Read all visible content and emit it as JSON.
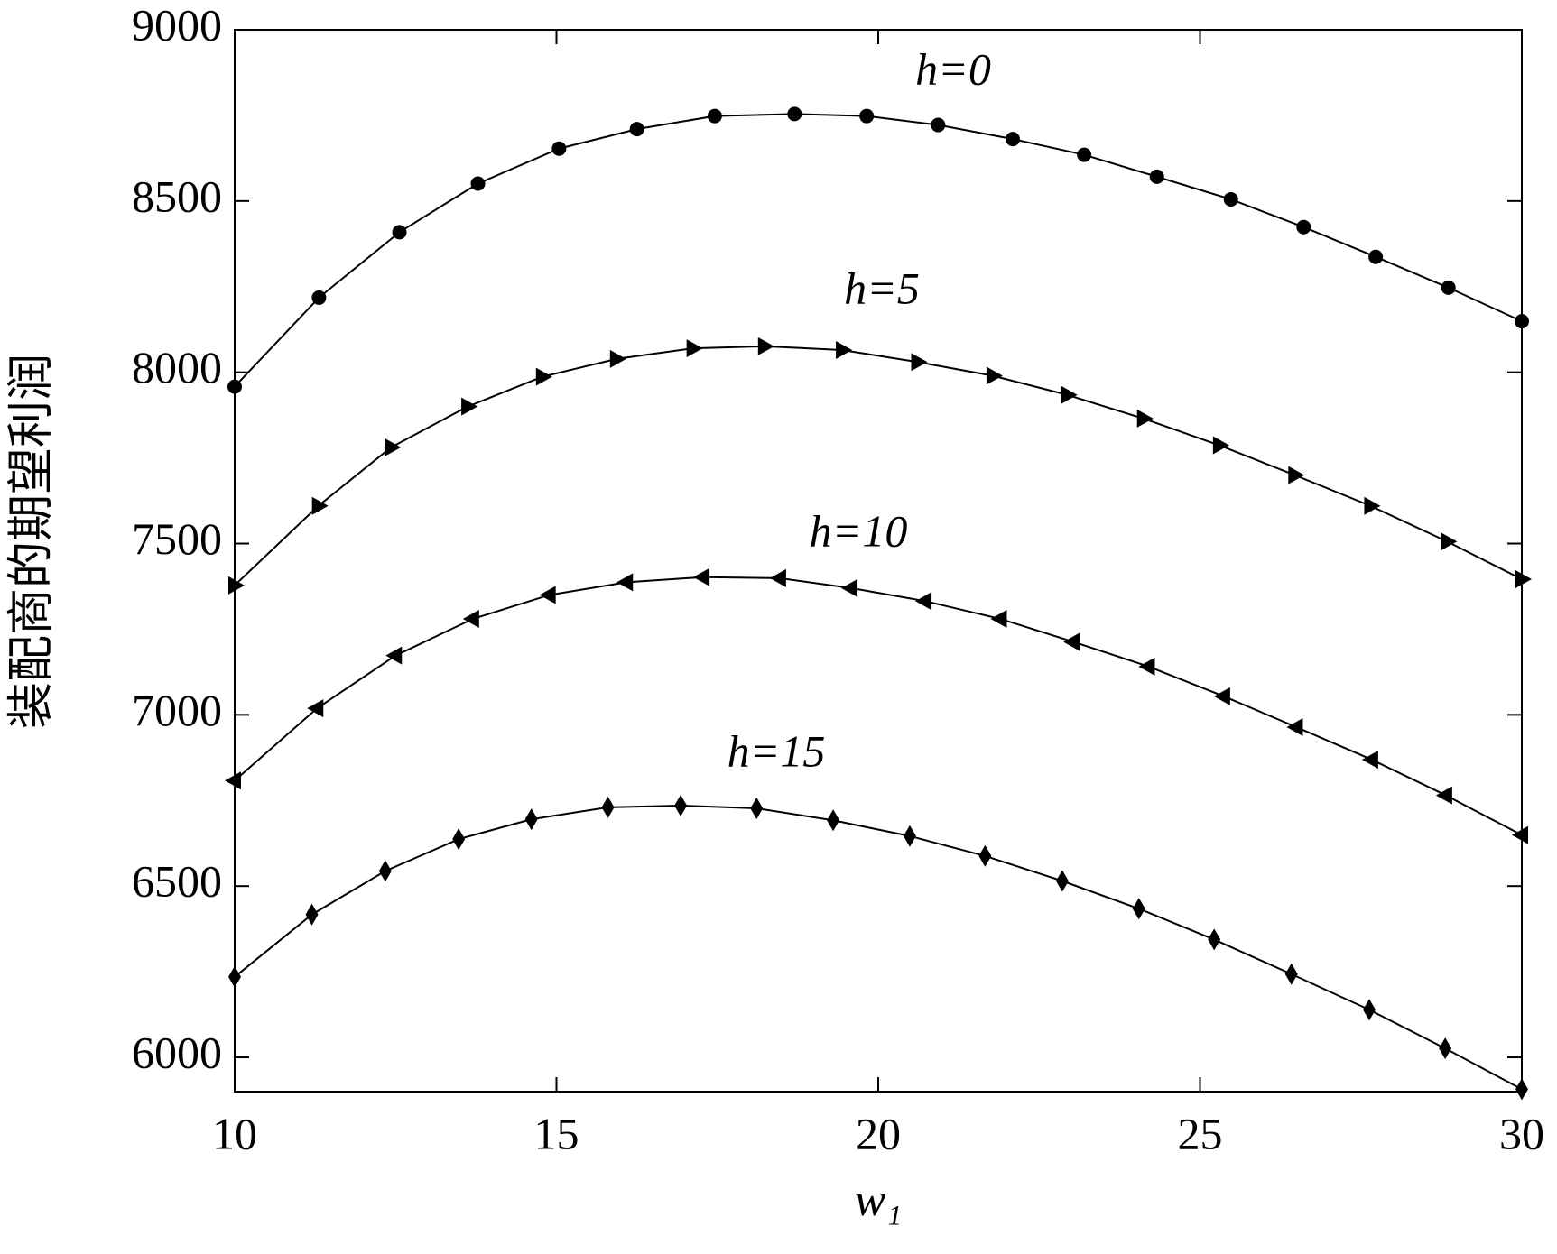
{
  "chart_data": {
    "type": "line",
    "xlabel": "w₁",
    "ylabel": "装配商的期望利润",
    "xlim": [
      10,
      30
    ],
    "xticks": [
      10,
      15,
      20,
      25,
      30
    ],
    "ylim": [
      5900,
      9000
    ],
    "yticks": [
      6000,
      6500,
      7000,
      7500,
      8000,
      8500,
      9000
    ],
    "series": [
      {
        "name": "h=0",
        "color": "#000000",
        "marker": "circle",
        "x": [
          10,
          11.31,
          12.56,
          13.78,
          15.04,
          16.25,
          17.46,
          18.7,
          19.82,
          20.93,
          22.09,
          23.2,
          24.33,
          25.48,
          26.61,
          27.73,
          28.86,
          30
        ],
        "values": [
          7958,
          8218,
          8409,
          8551,
          8653,
          8710,
          8748,
          8754,
          8748,
          8722,
          8681,
          8635,
          8571,
          8505,
          8424,
          8337,
          8247,
          8149
        ]
      },
      {
        "name": "h=5",
        "color": "#000000",
        "marker": "triangle-right",
        "x": [
          10,
          11.3,
          12.43,
          13.62,
          14.78,
          15.93,
          17.12,
          18.23,
          19.44,
          20.61,
          21.78,
          22.94,
          24.12,
          25.3,
          26.47,
          27.65,
          28.84,
          30
        ],
        "values": [
          7378,
          7610,
          7781,
          7900,
          7987,
          8039,
          8070,
          8076,
          8065,
          8030,
          7990,
          7934,
          7865,
          7787,
          7700,
          7610,
          7506,
          7396
        ]
      },
      {
        "name": "h=10",
        "color": "#000000",
        "marker": "triangle-left",
        "x": [
          10,
          11.28,
          12.5,
          13.7,
          14.89,
          16.09,
          17.28,
          18.47,
          19.58,
          20.73,
          21.9,
          23.03,
          24.2,
          25.37,
          26.5,
          27.67,
          28.82,
          30
        ],
        "values": [
          6808,
          7019,
          7173,
          7280,
          7350,
          7387,
          7402,
          7399,
          7370,
          7332,
          7280,
          7213,
          7141,
          7054,
          6964,
          6869,
          6765,
          6649
        ]
      },
      {
        "name": "h=15",
        "color": "#000000",
        "marker": "diamond",
        "x": [
          10,
          11.2,
          12.34,
          13.48,
          14.61,
          15.8,
          16.93,
          18.11,
          19.3,
          20.49,
          21.66,
          22.86,
          24.05,
          25.22,
          26.42,
          27.63,
          28.81,
          30
        ],
        "values": [
          6235,
          6417,
          6544,
          6637,
          6695,
          6730,
          6735,
          6727,
          6692,
          6646,
          6588,
          6515,
          6434,
          6344,
          6243,
          6139,
          6026,
          5907
        ]
      }
    ]
  }
}
